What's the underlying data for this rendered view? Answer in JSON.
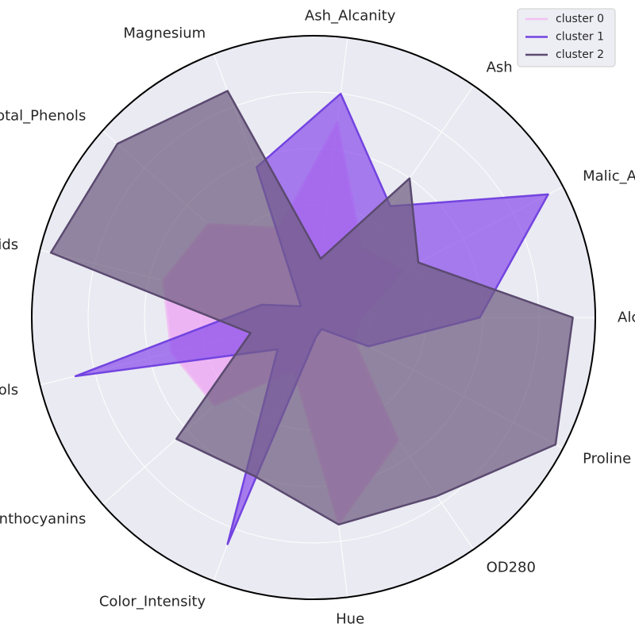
{
  "chart_data": {
    "type": "radar",
    "title": "",
    "axes": [
      "Alcohol",
      "Malic_Acid",
      "Ash",
      "Ash_Alcanity",
      "Magnesium",
      "Total_Phenols",
      "Flavanoids",
      "Nonflavanoid_Phenols",
      "Proanthocyanins",
      "Color_Intensity",
      "Hue",
      "OD280",
      "Proline"
    ],
    "r_range": [
      0,
      1
    ],
    "grid": true,
    "legend_position": "top-right",
    "series": [
      {
        "name": "cluster 0",
        "color": "#f0c2f2",
        "fill_color": "#ee9ff3",
        "values": [
          0.17,
          0.36,
          0.3,
          0.7,
          0.34,
          0.5,
          0.55,
          0.52,
          0.47,
          0.2,
          0.74,
          0.53,
          0.16
        ]
      },
      {
        "name": "cluster 1",
        "color": "#7344e0",
        "fill_color": "#8a4fea",
        "values": [
          0.59,
          0.94,
          0.48,
          0.8,
          0.57,
          0.06,
          0.19,
          0.87,
          0.17,
          0.86,
          0.07,
          0.05,
          0.22
        ]
      },
      {
        "name": "cluster 2",
        "color": "#5b4a70",
        "fill_color": "#6f5d7f",
        "values": [
          0.92,
          0.42,
          0.6,
          0.21,
          0.86,
          0.93,
          0.96,
          0.23,
          0.65,
          0.6,
          0.74,
          0.77,
          0.97
        ]
      }
    ]
  }
}
